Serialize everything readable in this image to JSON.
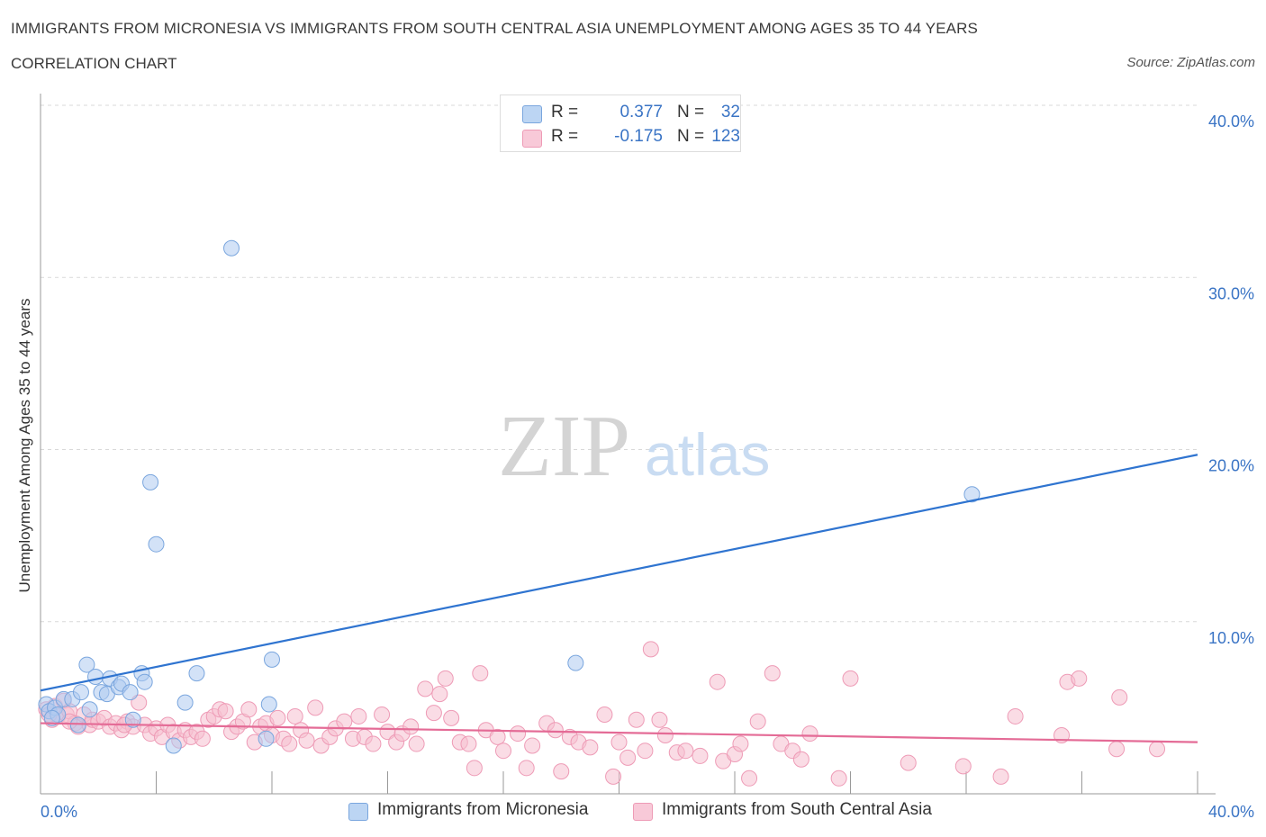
{
  "title": "IMMIGRANTS FROM MICRONESIA VS IMMIGRANTS FROM SOUTH CENTRAL ASIA UNEMPLOYMENT AMONG AGES 35 TO 44 YEARS",
  "subtitle": "CORRELATION CHART",
  "source": "Source: ZipAtlas.com",
  "watermark": {
    "zip": "ZIP",
    "atlas": "atlas"
  },
  "legend_top": [
    {
      "r_label": "R =",
      "r_value": "0.377",
      "n_label": "N =",
      "n_value": "32"
    },
    {
      "r_label": "R =",
      "r_value": "-0.175",
      "n_label": "N =",
      "n_value": "123"
    }
  ],
  "legend_bottom": [
    {
      "label": "Immigrants from Micronesia"
    },
    {
      "label": "Immigrants from South Central Asia"
    }
  ],
  "colors": {
    "blue_fill": "#aecbf0",
    "blue_stroke": "#7aa6de",
    "blue_line": "#2f74d0",
    "pink_fill": "#f6bfd0",
    "pink_stroke": "#ee9bb6",
    "pink_line": "#e46b96",
    "grid": "#d9d9d9",
    "axis_text": "#3a74c5"
  },
  "chart_data": {
    "type": "scatter",
    "title": "IMMIGRANTS FROM MICRONESIA VS IMMIGRANTS FROM SOUTH CENTRAL ASIA UNEMPLOYMENT AMONG AGES 35 TO 44 YEARS",
    "xlabel": "",
    "ylabel": "Unemployment Among Ages 35 to 44 years",
    "xlim": [
      0,
      40
    ],
    "ylim": [
      0,
      40
    ],
    "x_tick_labels": [
      "0.0%",
      "40.0%"
    ],
    "y_tick_labels": [
      {
        "value": 10,
        "label": "10.0%"
      },
      {
        "value": 20,
        "label": "20.0%"
      },
      {
        "value": 30,
        "label": "30.0%"
      },
      {
        "value": 40,
        "label": "40.0%"
      }
    ],
    "grid": true,
    "series": [
      {
        "name": "Immigrants from Micronesia",
        "color": "blue",
        "trend": {
          "x": [
            0,
            40
          ],
          "y": [
            6.0,
            19.7
          ]
        },
        "points": [
          [
            0.2,
            5.2
          ],
          [
            0.3,
            4.8
          ],
          [
            0.5,
            5.0
          ],
          [
            0.6,
            4.6
          ],
          [
            0.8,
            5.5
          ],
          [
            1.1,
            5.5
          ],
          [
            1.3,
            4.0
          ],
          [
            1.4,
            5.9
          ],
          [
            1.6,
            7.5
          ],
          [
            1.7,
            4.9
          ],
          [
            1.9,
            6.8
          ],
          [
            2.1,
            5.9
          ],
          [
            2.3,
            5.8
          ],
          [
            2.4,
            6.7
          ],
          [
            2.7,
            6.2
          ],
          [
            2.8,
            6.4
          ],
          [
            3.1,
            5.9
          ],
          [
            3.2,
            4.3
          ],
          [
            3.5,
            7.0
          ],
          [
            3.6,
            6.5
          ],
          [
            3.8,
            18.1
          ],
          [
            4.0,
            14.5
          ],
          [
            4.6,
            2.8
          ],
          [
            5.0,
            5.3
          ],
          [
            5.4,
            7.0
          ],
          [
            6.6,
            31.7
          ],
          [
            7.8,
            3.2
          ],
          [
            7.9,
            5.2
          ],
          [
            8.0,
            7.8
          ],
          [
            18.5,
            7.6
          ],
          [
            32.2,
            17.4
          ],
          [
            0.4,
            4.4
          ]
        ]
      },
      {
        "name": "Immigrants from South Central Asia",
        "color": "pink",
        "trend": {
          "x": [
            0,
            40
          ],
          "y": [
            4.1,
            3.0
          ]
        },
        "points": [
          [
            0.2,
            4.9
          ],
          [
            0.4,
            4.3
          ],
          [
            0.5,
            5.1
          ],
          [
            0.6,
            4.5
          ],
          [
            0.8,
            5.4
          ],
          [
            0.9,
            4.6
          ],
          [
            1.0,
            4.8
          ],
          [
            1.2,
            4.1
          ],
          [
            1.3,
            3.9
          ],
          [
            1.5,
            4.6
          ],
          [
            1.7,
            4.0
          ],
          [
            1.8,
            4.3
          ],
          [
            2.0,
            4.2
          ],
          [
            2.2,
            4.4
          ],
          [
            2.4,
            3.9
          ],
          [
            2.6,
            4.1
          ],
          [
            2.8,
            3.7
          ],
          [
            3.0,
            4.2
          ],
          [
            3.2,
            3.9
          ],
          [
            3.4,
            5.3
          ],
          [
            3.6,
            4.0
          ],
          [
            3.8,
            3.5
          ],
          [
            4.0,
            3.8
          ],
          [
            4.2,
            3.3
          ],
          [
            4.4,
            4.0
          ],
          [
            4.6,
            3.6
          ],
          [
            4.8,
            3.1
          ],
          [
            5.0,
            3.7
          ],
          [
            5.2,
            3.3
          ],
          [
            5.4,
            3.6
          ],
          [
            5.6,
            3.2
          ],
          [
            5.8,
            4.3
          ],
          [
            6.0,
            4.5
          ],
          [
            6.2,
            4.9
          ],
          [
            6.4,
            4.8
          ],
          [
            6.6,
            3.6
          ],
          [
            6.8,
            3.9
          ],
          [
            7.0,
            4.2
          ],
          [
            7.2,
            4.9
          ],
          [
            7.4,
            3.0
          ],
          [
            7.6,
            3.9
          ],
          [
            7.8,
            4.1
          ],
          [
            8.0,
            3.4
          ],
          [
            8.2,
            4.4
          ],
          [
            8.4,
            3.2
          ],
          [
            8.6,
            2.9
          ],
          [
            8.8,
            4.5
          ],
          [
            9.0,
            3.7
          ],
          [
            9.2,
            3.1
          ],
          [
            9.5,
            5.0
          ],
          [
            9.7,
            2.8
          ],
          [
            10.0,
            3.3
          ],
          [
            10.2,
            3.8
          ],
          [
            10.5,
            4.2
          ],
          [
            10.8,
            3.2
          ],
          [
            11.0,
            4.5
          ],
          [
            11.2,
            3.3
          ],
          [
            11.5,
            2.9
          ],
          [
            11.8,
            4.6
          ],
          [
            12.0,
            3.6
          ],
          [
            12.3,
            3.0
          ],
          [
            12.5,
            3.5
          ],
          [
            12.8,
            3.9
          ],
          [
            13.0,
            2.9
          ],
          [
            13.3,
            6.1
          ],
          [
            13.6,
            4.7
          ],
          [
            13.8,
            5.8
          ],
          [
            14.0,
            6.7
          ],
          [
            14.2,
            4.4
          ],
          [
            14.5,
            3.0
          ],
          [
            14.8,
            2.9
          ],
          [
            15.0,
            1.5
          ],
          [
            15.2,
            7.0
          ],
          [
            15.4,
            3.7
          ],
          [
            15.8,
            3.3
          ],
          [
            16.0,
            2.5
          ],
          [
            16.5,
            3.5
          ],
          [
            16.8,
            1.5
          ],
          [
            17.0,
            2.8
          ],
          [
            17.5,
            4.1
          ],
          [
            17.8,
            3.7
          ],
          [
            18.0,
            1.3
          ],
          [
            18.3,
            3.3
          ],
          [
            18.6,
            3.0
          ],
          [
            19.0,
            2.7
          ],
          [
            19.5,
            4.6
          ],
          [
            19.8,
            1.0
          ],
          [
            20.0,
            3.0
          ],
          [
            20.3,
            2.1
          ],
          [
            20.6,
            4.3
          ],
          [
            20.9,
            2.5
          ],
          [
            21.1,
            8.4
          ],
          [
            21.4,
            4.3
          ],
          [
            21.6,
            3.4
          ],
          [
            22.0,
            2.4
          ],
          [
            22.3,
            2.5
          ],
          [
            22.8,
            2.2
          ],
          [
            23.4,
            6.5
          ],
          [
            23.6,
            1.9
          ],
          [
            24.0,
            2.3
          ],
          [
            24.2,
            2.9
          ],
          [
            24.5,
            0.9
          ],
          [
            24.8,
            4.2
          ],
          [
            25.3,
            7.0
          ],
          [
            25.6,
            2.9
          ],
          [
            26.0,
            2.5
          ],
          [
            26.3,
            2.0
          ],
          [
            26.6,
            3.5
          ],
          [
            27.6,
            0.9
          ],
          [
            28.0,
            6.7
          ],
          [
            30.0,
            1.8
          ],
          [
            31.9,
            1.6
          ],
          [
            33.2,
            1.0
          ],
          [
            33.7,
            4.5
          ],
          [
            35.3,
            3.4
          ],
          [
            35.5,
            6.5
          ],
          [
            35.9,
            6.7
          ],
          [
            37.2,
            2.6
          ],
          [
            37.3,
            5.6
          ],
          [
            38.6,
            2.6
          ],
          [
            0.3,
            4.6
          ],
          [
            1.0,
            4.2
          ],
          [
            2.9,
            4.0
          ]
        ]
      }
    ]
  }
}
